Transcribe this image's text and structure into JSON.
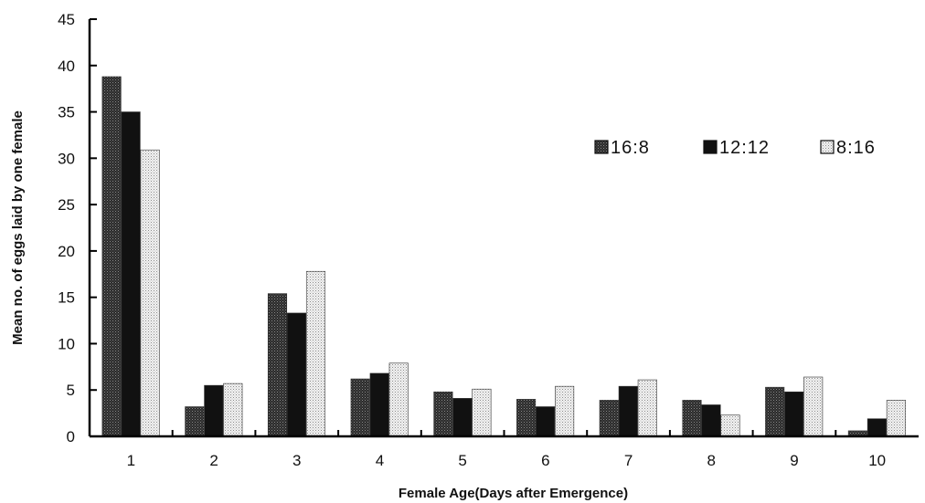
{
  "chart_data": {
    "type": "bar",
    "title": "",
    "xlabel": "Female Age(Days after Emergence)",
    "ylabel": "Mean no. of  eggs laid by one female",
    "categories": [
      "1",
      "2",
      "3",
      "4",
      "5",
      "6",
      "7",
      "8",
      "9",
      "10"
    ],
    "ylim": [
      0,
      45
    ],
    "yticks": [
      "0",
      "5",
      "10",
      "15",
      "20",
      "25",
      "30",
      "35",
      "40",
      "45"
    ],
    "grid": false,
    "legend_position": "top-right",
    "series": [
      {
        "name": "16:8",
        "color": "#4a4a4a",
        "pattern": "dense-dots",
        "values": [
          38.8,
          3.2,
          15.4,
          6.2,
          4.8,
          4.0,
          3.9,
          3.9,
          5.3,
          0.6
        ]
      },
      {
        "name": "12:12",
        "color": "#111111",
        "pattern": "solid",
        "values": [
          35.0,
          5.5,
          13.3,
          6.8,
          4.1,
          3.2,
          5.4,
          3.4,
          4.8,
          1.9
        ]
      },
      {
        "name": "8:16",
        "color": "#e4e4e4",
        "pattern": "light-dots",
        "values": [
          30.9,
          5.7,
          17.8,
          7.9,
          5.1,
          5.4,
          6.1,
          2.3,
          6.4,
          3.9
        ]
      }
    ]
  }
}
